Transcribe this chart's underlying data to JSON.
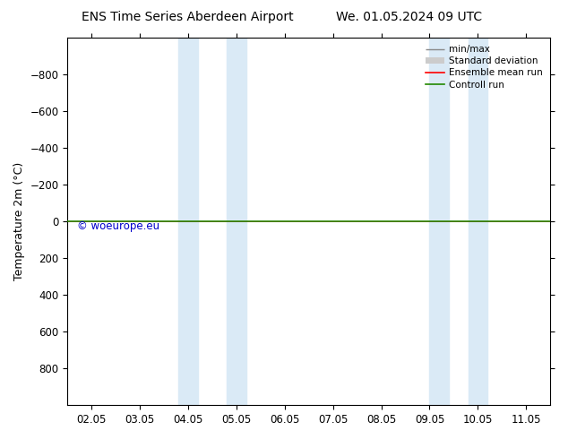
{
  "title_left": "ENS Time Series Aberdeen Airport",
  "title_right": "We. 01.05.2024 09 UTC",
  "ylabel": "Temperature 2m (°C)",
  "ylim_top": -1000,
  "ylim_bottom": 1000,
  "yticks": [
    -800,
    -600,
    -400,
    -200,
    0,
    200,
    400,
    600,
    800
  ],
  "xtick_labels": [
    "02.05",
    "03.05",
    "04.05",
    "05.05",
    "06.05",
    "07.05",
    "08.05",
    "09.05",
    "10.05",
    "11.05"
  ],
  "xtick_positions": [
    0,
    1,
    2,
    3,
    4,
    5,
    6,
    7,
    8,
    9
  ],
  "blue_bands": [
    [
      1.8,
      2.2
    ],
    [
      2.8,
      3.2
    ],
    [
      7.0,
      7.4
    ],
    [
      7.8,
      8.2
    ]
  ],
  "band_color": "#daeaf6",
  "green_line_color": "#228800",
  "red_line_color": "#ff0000",
  "watermark": "© woeurope.eu",
  "watermark_color": "#0000cc",
  "background_color": "#ffffff",
  "legend_labels": [
    "min/max",
    "Standard deviation",
    "Ensemble mean run",
    "Controll run"
  ],
  "legend_line_colors": [
    "#888888",
    "#cccccc",
    "#ff0000",
    "#228800"
  ],
  "title_fontsize": 10,
  "axis_fontsize": 9,
  "tick_fontsize": 8.5
}
